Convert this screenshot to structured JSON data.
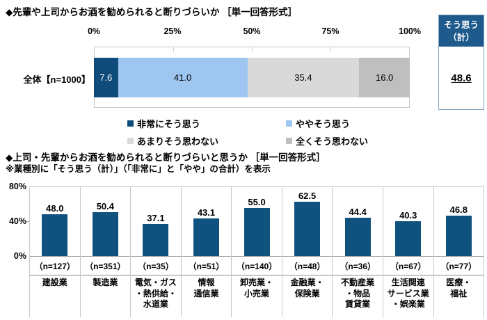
{
  "chart_data": [
    {
      "type": "bar",
      "stacked": true,
      "orientation": "horizontal",
      "title": "◆先輩や上司からお酒を勧められると断りづらいか ［単一回答形式］",
      "categories": [
        "全体【n=1000】"
      ],
      "series": [
        {
          "name": "非常にそう思う",
          "value": 7.6,
          "label": "7.6",
          "color": "#0e4b7b",
          "text_color": "#ffffff"
        },
        {
          "name": "ややそう思う",
          "value": 41.0,
          "label": "41.0",
          "color": "#9ec6f0",
          "text_color": "#000000"
        },
        {
          "name": "あまりそう思わない",
          "value": 35.4,
          "label": "35.4",
          "color": "#d9d9d9",
          "text_color": "#000000"
        },
        {
          "name": "全くそう思わない",
          "value": 16.0,
          "label": "16.0",
          "color": "#bfbfbf",
          "text_color": "#000000"
        }
      ],
      "x_ticks": [
        "0%",
        "25%",
        "50%",
        "75%",
        "100%"
      ],
      "xlim": [
        0,
        100
      ],
      "legend_position": "bottom",
      "summary": {
        "title": "そう思う（計）",
        "line1": "そう思う",
        "line2": "（計）",
        "value": 48.6,
        "label": "48.6"
      }
    },
    {
      "type": "bar",
      "title": "◆上司・先輩からお酒を勧められると断りづらいと思うか ［単一回答形式］",
      "note": "※業種別に「そう思う（計）」（「非常に」と「やや」の合計）を表示",
      "categories": [
        "建設業",
        "製造業",
        "電気・ガス・熱供給・水道業",
        "情報通信業",
        "卸売業・小売業",
        "金融業・保険業",
        "不動産業・物品賃貸業",
        "生活関連サービス業・娯楽業",
        "医療・福祉"
      ],
      "display_names": [
        "建設業",
        "製造業",
        "電気・ガス\n・熱供給・\n水道業",
        "情報\n通信業",
        "卸売業・\n小売業",
        "金融業・\n保険業",
        "不動産業\n・物品\n賃貸業",
        "生活関連\nサービス業\n・娯楽業",
        "医療・\n福祉"
      ],
      "n_labels": [
        "（n=127）",
        "（n=351）",
        "（n=35）",
        "（n=51）",
        "（n=140）",
        "（n=48）",
        "（n=36）",
        "（n=67）",
        "（n=77）"
      ],
      "values": [
        48.0,
        50.4,
        37.1,
        43.1,
        55.0,
        62.5,
        44.4,
        40.3,
        46.8
      ],
      "labels": [
        "48.0",
        "50.4",
        "37.1",
        "43.1",
        "55.0",
        "62.5",
        "44.4",
        "40.3",
        "46.8"
      ],
      "y_ticks": [
        "80%",
        "40%",
        "0%"
      ],
      "ylim": [
        0,
        80
      ],
      "grid": false,
      "bar_color": "#10527e"
    }
  ]
}
